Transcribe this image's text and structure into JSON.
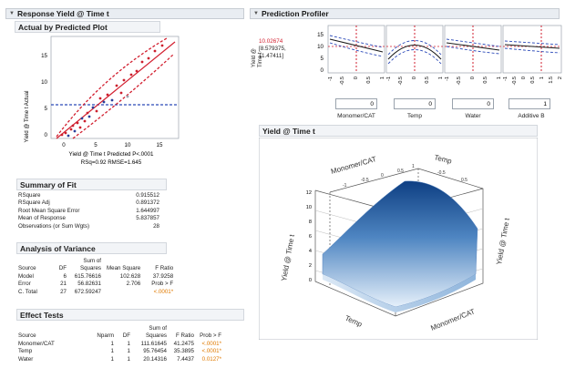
{
  "left_panel": {
    "title": "Response Yield @ Time t",
    "avp": {
      "title": "Actual by Predicted Plot",
      "y_axis_label": "Yield @ Time t Actual",
      "x_caption": "Yield @ Time t Predicted P<.0001",
      "rsq_caption": "RSq=0.92 RMSE=1.645",
      "x_ticks": [
        "0",
        "5",
        "10",
        "15"
      ],
      "y_ticks": [
        "0",
        "5",
        "10",
        "15"
      ]
    },
    "summary_of_fit": {
      "title": "Summary of Fit",
      "rows": [
        {
          "label": "RSquare",
          "value": "0.915512"
        },
        {
          "label": "RSquare Adj",
          "value": "0.891372"
        },
        {
          "label": "Root Mean Square Error",
          "value": "1.644997"
        },
        {
          "label": "Mean of Response",
          "value": "5.837857"
        },
        {
          "label": "Observations (or Sum Wgts)",
          "value": "28"
        }
      ]
    },
    "anova": {
      "title": "Analysis of Variance",
      "header_top": "Sum of",
      "headers": [
        "Source",
        "DF",
        "Squares",
        "Mean Square",
        "F Ratio"
      ],
      "rows": [
        {
          "source": "Model",
          "df": "6",
          "ss": "615.76616",
          "ms": "102.628",
          "f": "37.9258"
        },
        {
          "source": "Error",
          "df": "21",
          "ss": "56.82631",
          "ms": "2.706",
          "f": "Prob > F"
        },
        {
          "source": "C. Total",
          "df": "27",
          "ss": "672.59247",
          "ms": "",
          "f": "<.0001*"
        }
      ]
    },
    "effect_tests": {
      "title": "Effect Tests",
      "header_top": "Sum of",
      "headers": [
        "Source",
        "Nparm",
        "DF",
        "Squares",
        "F Ratio",
        "Prob > F"
      ],
      "rows": [
        {
          "source": "Monomer/CAT",
          "nparm": "1",
          "df": "1",
          "ss": "111.61645",
          "f": "41.2475",
          "p": "<.0001*"
        },
        {
          "source": "Temp",
          "nparm": "1",
          "df": "1",
          "ss": "95.76454",
          "f": "35.3895",
          "p": "<.0001*"
        },
        {
          "source": "Water",
          "nparm": "1",
          "df": "1",
          "ss": "20.14316",
          "f": "7.4437",
          "p": "0.0127*"
        }
      ]
    }
  },
  "profiler": {
    "title": "Prediction Profiler",
    "y_label_lines": [
      "Yield @",
      "Time t"
    ],
    "prediction_value": "10.02674",
    "ci_lines": [
      "[8.579375,",
      "11.47411]"
    ],
    "y_ticks": [
      "15",
      "10",
      "5",
      "0"
    ],
    "factors": [
      {
        "name": "Monomer/CAT",
        "value": "0",
        "ticks": [
          "-1",
          "-0.5",
          "0",
          "0.5",
          "1"
        ]
      },
      {
        "name": "Temp",
        "value": "0",
        "ticks": [
          "-1",
          "-0.5",
          "0",
          "0.5",
          "1"
        ]
      },
      {
        "name": "Water",
        "value": "0",
        "ticks": [
          "-1",
          "-0.5",
          "0",
          "0.5",
          "1"
        ]
      },
      {
        "name": "Additive B",
        "value": "1",
        "ticks": [
          "-1",
          "-0.5",
          "0",
          "0.5",
          "1",
          "1.5",
          "2"
        ]
      }
    ]
  },
  "surface": {
    "title": "Yield @ Time t",
    "label_monomer_top": "Monomer/CAT",
    "label_temp_top": "Temp",
    "label_yield_left": "Yield @ Time t",
    "label_yield_right": "Yield @ Time t",
    "label_temp_bottom": "Temp",
    "label_monomer_bottom": "Monomer/CAT",
    "z_ticks": [
      "12",
      "10",
      "8",
      "6",
      "4",
      "2",
      "0"
    ],
    "top_ticks": [
      "-1",
      "-0.5",
      "0",
      "0.5",
      "1",
      "-0.5",
      "0.5"
    ]
  },
  "colors": {
    "point_red": "#cc1f2d",
    "point_blue": "#2a3f9a",
    "dash_blue": "#2b49b8",
    "ref_red": "#d21f2f",
    "significant": "#e07a00"
  }
}
